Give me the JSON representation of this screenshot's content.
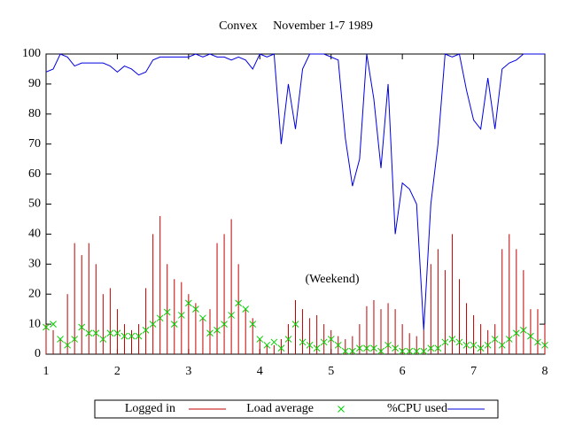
{
  "chart_data": {
    "type": "impulse-point-line",
    "title": "Convex     November 1-7 1989",
    "annotation": "(Weekend)",
    "x": [
      1.0,
      1.1,
      1.2,
      1.3,
      1.4,
      1.5,
      1.6,
      1.7,
      1.8,
      1.9,
      2.0,
      2.1,
      2.2,
      2.3,
      2.4,
      2.5,
      2.6,
      2.7,
      2.8,
      2.9,
      3.0,
      3.1,
      3.2,
      3.3,
      3.4,
      3.5,
      3.6,
      3.7,
      3.8,
      3.9,
      4.0,
      4.1,
      4.2,
      4.3,
      4.4,
      4.5,
      4.6,
      4.7,
      4.8,
      4.9,
      5.0,
      5.1,
      5.2,
      5.3,
      5.4,
      5.5,
      5.6,
      5.7,
      5.8,
      5.9,
      6.0,
      6.1,
      6.2,
      6.3,
      6.4,
      6.5,
      6.6,
      6.7,
      6.8,
      6.9,
      7.0,
      7.1,
      7.2,
      7.3,
      7.4,
      7.5,
      7.6,
      7.7,
      7.8,
      7.9,
      8.0
    ],
    "series": [
      {
        "name": "Logged in",
        "color": "#c00000",
        "style": "impulses",
        "values": [
          10,
          8,
          5,
          20,
          37,
          33,
          37,
          30,
          20,
          22,
          15,
          10,
          8,
          10,
          22,
          40,
          46,
          30,
          25,
          24,
          20,
          17,
          12,
          15,
          37,
          40,
          45,
          30,
          15,
          12,
          5,
          3,
          3,
          5,
          10,
          18,
          15,
          12,
          13,
          10,
          8,
          6,
          5,
          6,
          10,
          16,
          18,
          15,
          17,
          15,
          10,
          7,
          6,
          8,
          30,
          35,
          28,
          40,
          25,
          17,
          13,
          10,
          8,
          10,
          35,
          40,
          35,
          28,
          15,
          15,
          10
        ]
      },
      {
        "name": "Load average",
        "color": "#00d000",
        "style": "points",
        "values": [
          9,
          10,
          5,
          3,
          5,
          9,
          7,
          7,
          5,
          7,
          7,
          6,
          6,
          6,
          8,
          10,
          12,
          14,
          10,
          13,
          17,
          15,
          12,
          7,
          8,
          10,
          13,
          17,
          15,
          10,
          5,
          3,
          4,
          2,
          5,
          10,
          4,
          3,
          2,
          4,
          5,
          3,
          1,
          1,
          2,
          2,
          2,
          1,
          3,
          2,
          1,
          1,
          1,
          1,
          2,
          2,
          4,
          5,
          4,
          3,
          3,
          2,
          3,
          5,
          3,
          5,
          7,
          8,
          6,
          4,
          3
        ]
      },
      {
        "name": "%CPU used",
        "color": "#0000e0",
        "style": "lines",
        "values": [
          94,
          95,
          100,
          99,
          96,
          97,
          97,
          97,
          97,
          96,
          94,
          96,
          95,
          93,
          94,
          98,
          99,
          99,
          99,
          99,
          99,
          100,
          99,
          100,
          99,
          99,
          98,
          99,
          98,
          95,
          100,
          99,
          100,
          70,
          90,
          75,
          95,
          100,
          100,
          100,
          99,
          98,
          72,
          56,
          65,
          100,
          85,
          62,
          90,
          40,
          57,
          55,
          50,
          8,
          50,
          70,
          100,
          99,
          100,
          88,
          78,
          75,
          92,
          75,
          95,
          97,
          98,
          100,
          100,
          100,
          100
        ]
      }
    ],
    "xlim": [
      1,
      8
    ],
    "xticks": [
      1,
      2,
      3,
      4,
      5,
      6,
      7,
      8
    ],
    "ylim": [
      0,
      100
    ],
    "yticks": [
      0,
      10,
      20,
      30,
      40,
      50,
      60,
      70,
      80,
      90,
      100
    ],
    "grid": false,
    "legend": "bottom"
  }
}
